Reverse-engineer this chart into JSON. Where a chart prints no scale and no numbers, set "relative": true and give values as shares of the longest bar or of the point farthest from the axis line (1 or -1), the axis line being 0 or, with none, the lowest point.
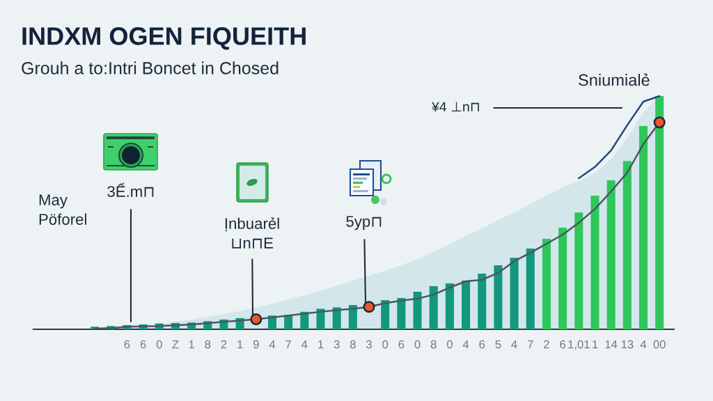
{
  "chart_data": {
    "type": "bar",
    "title": "INDXM OGEN FIQUEITH",
    "subtitle": "Grouh a to:Intri Boncet in Chosed",
    "relative": true,
    "categories": [
      null,
      null,
      "6",
      "6",
      "0",
      "Z",
      "1",
      "8",
      "2",
      "1",
      "9",
      "4",
      "7",
      "4",
      "1",
      "3",
      "8",
      "3",
      "0",
      "6",
      "0",
      "8",
      "0",
      "4",
      "6",
      "5",
      "4",
      "7",
      "2",
      "6",
      "1,01",
      "1",
      "14",
      "13",
      "4",
      "00"
    ],
    "series": [
      {
        "type": "area",
        "color": "#cfe5ea",
        "values": [
          0,
          0.003,
          0.006,
          0.012,
          0.021,
          0.033,
          0.042,
          0.054,
          0.066,
          0.078,
          0.093,
          0.11,
          0.128,
          0.146,
          0.164,
          0.188,
          0.209,
          0.23,
          0.251,
          0.275,
          0.301,
          0.331,
          0.364,
          0.4,
          0.433,
          0.469,
          0.501,
          0.537,
          0.573,
          0.609,
          0.635,
          0.67,
          0.73,
          0.82,
          0.93,
          1.0
        ]
      },
      {
        "colors": [
          "#13977f",
          "#13977f",
          "#13977f",
          "#13977f",
          "#13977f",
          "#13977f",
          "#13977f",
          "#13977f",
          "#13977f",
          "#13977f",
          "#13977f",
          "#13977f",
          "#13977f",
          "#13977f",
          "#13977f",
          "#13977f",
          "#13977f",
          "#13977f",
          "#13977f",
          "#13977f",
          "#13977f",
          "#13977f",
          "#13977f",
          "#13977f",
          "#13977f",
          "#13977f",
          "#13977f",
          "#13977f",
          "#2fc65c",
          "#2fc65c",
          "#2fc65c",
          "#2fc65c",
          "#2fc65c",
          "#2fc65c",
          "#2fc65c",
          "#2fc65c"
        ],
        "values": [
          0.011,
          0.014,
          0.018,
          0.021,
          0.025,
          0.027,
          0.029,
          0.035,
          0.042,
          0.048,
          null,
          0.059,
          0.061,
          0.075,
          0.088,
          0.094,
          0.104,
          null,
          0.125,
          0.134,
          0.161,
          0.185,
          0.197,
          0.209,
          0.239,
          0.275,
          0.307,
          0.346,
          0.388,
          0.436,
          0.501,
          0.573,
          0.639,
          0.722,
          0.872,
          1.0
        ]
      },
      {
        "type": "line",
        "color": "#4b5661",
        "values": [
          0.003,
          0.005,
          0.011,
          0.013,
          0.014,
          0.017,
          0.021,
          0.026,
          0.032,
          0.037,
          0.043,
          0.051,
          0.059,
          0.067,
          0.075,
          0.082,
          0.088,
          0.096,
          0.112,
          0.123,
          0.131,
          0.149,
          0.179,
          0.206,
          0.212,
          0.242,
          0.292,
          0.328,
          0.367,
          0.406,
          0.457,
          0.516,
          0.591,
          0.672,
          0.794,
          0.887
        ]
      },
      {
        "type": "line",
        "color": "#1e4b7b",
        "values": [
          null,
          null,
          null,
          null,
          null,
          null,
          null,
          null,
          null,
          null,
          null,
          null,
          null,
          null,
          null,
          null,
          null,
          null,
          null,
          null,
          null,
          null,
          null,
          null,
          null,
          null,
          null,
          null,
          null,
          null,
          0.648,
          0.696,
          0.767,
          0.875,
          0.976,
          1.0
        ]
      },
      {
        "type": "scatter",
        "color": "#e9572e",
        "values": [
          null,
          null,
          null,
          null,
          null,
          null,
          null,
          null,
          null,
          null,
          0.043,
          null,
          null,
          null,
          null,
          null,
          null,
          0.096,
          null,
          null,
          null,
          null,
          null,
          null,
          null,
          null,
          null,
          null,
          null,
          null,
          null,
          null,
          null,
          null,
          null,
          0.887
        ]
      }
    ],
    "annotations": [
      "May\nPöforel",
      "3Ể.m⊓",
      "Ịnbuarẻl\n⊔n⊓E",
      "5yp⊓",
      "¥4 ⊥n⊓",
      "Sniumialẻ"
    ]
  }
}
